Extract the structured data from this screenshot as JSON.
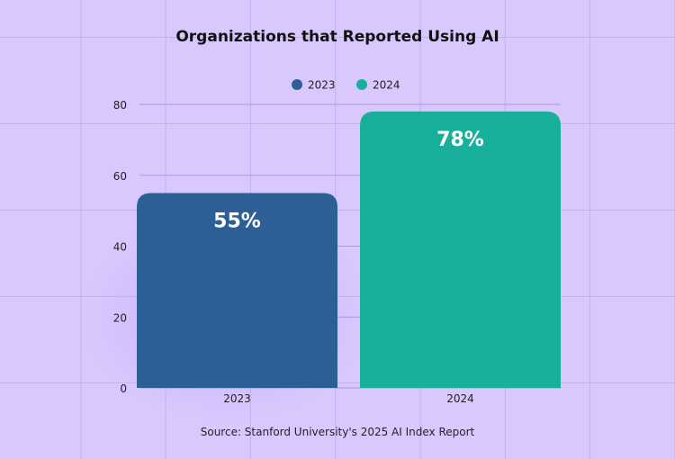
{
  "chart_data": {
    "type": "bar",
    "title": "Organizations that Reported Using AI",
    "categories": [
      "2023",
      "2024"
    ],
    "series": [
      {
        "name": "2023",
        "values": [
          55,
          null
        ],
        "color": "#2d5f96"
      },
      {
        "name": "2024",
        "values": [
          null,
          78
        ],
        "color": "#18b09b"
      }
    ],
    "data_labels": [
      "55%",
      "78%"
    ],
    "ylim": [
      0,
      80
    ],
    "yticks": [
      0,
      20,
      40,
      60,
      80
    ],
    "grid": true,
    "legend": "top-center",
    "source": "Source: Stanford University's 2025 AI Index Report"
  }
}
